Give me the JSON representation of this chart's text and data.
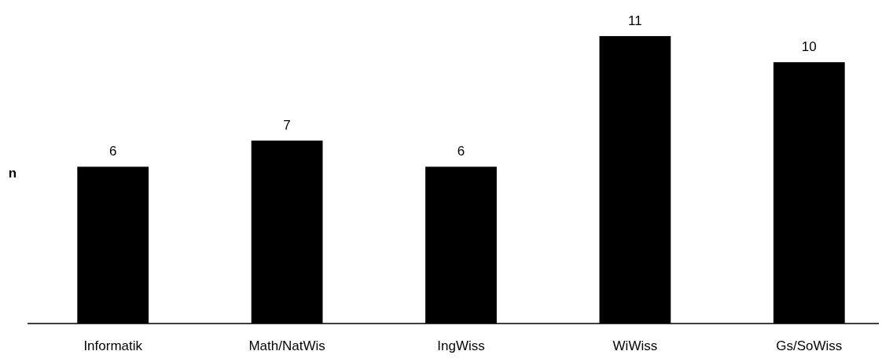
{
  "chart_data": {
    "type": "bar",
    "ylabel": "n",
    "categories": [
      "Informatik",
      "Math/NatWis",
      "IngWiss",
      "WiWiss",
      "Gs/SoWiss"
    ],
    "values": [
      6,
      7,
      6,
      11,
      10
    ],
    "color": "#000000",
    "data_labels": true
  }
}
